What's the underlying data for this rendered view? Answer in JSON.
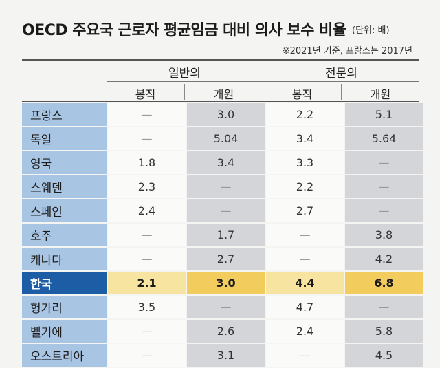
{
  "title": "OECD 주요국 근로자 평균임금 대비 의사 보수 비율",
  "unit": "(단위: 배)",
  "note": "※2021년 기준, 프랑스는 2017년",
  "groups": [
    "일반의",
    "전문의"
  ],
  "subheaders": [
    "봉직",
    "개원",
    "봉직",
    "개원"
  ],
  "chart_data": {
    "type": "table",
    "title": "OECD 주요국 근로자 평균임금 대비 의사 보수 비율",
    "columns": [
      "일반의 봉직",
      "일반의 개원",
      "전문의 봉직",
      "전문의 개원"
    ],
    "rows": [
      {
        "country": "프랑스",
        "values": [
          "—",
          "3.0",
          "2.2",
          "5.1"
        ]
      },
      {
        "country": "독일",
        "values": [
          "—",
          "5.04",
          "3.4",
          "5.64"
        ]
      },
      {
        "country": "영국",
        "values": [
          "1.8",
          "3.4",
          "3.3",
          "—"
        ]
      },
      {
        "country": "스웨덴",
        "values": [
          "2.3",
          "—",
          "2.2",
          "—"
        ]
      },
      {
        "country": "스페인",
        "values": [
          "2.4",
          "—",
          "2.7",
          "—"
        ]
      },
      {
        "country": "호주",
        "values": [
          "—",
          "1.7",
          "—",
          "3.8"
        ]
      },
      {
        "country": "캐나다",
        "values": [
          "—",
          "2.7",
          "—",
          "4.2"
        ]
      },
      {
        "country": "한국",
        "values": [
          "2.1",
          "3.0",
          "4.4",
          "6.8"
        ],
        "highlight": true
      },
      {
        "country": "헝가리",
        "values": [
          "3.5",
          "—",
          "4.7",
          "—"
        ]
      },
      {
        "country": "벨기에",
        "values": [
          "—",
          "2.6",
          "2.4",
          "5.8"
        ]
      },
      {
        "country": "오스트리아",
        "values": [
          "—",
          "3.1",
          "—",
          "4.5"
        ]
      }
    ]
  },
  "colors": {
    "label_bg": "#a9c5e4",
    "highlight_label_bg": "#1c5da6",
    "highlight_cell_light": "#f7e4a0",
    "highlight_cell_dark": "#f3cc5e",
    "gray_col": "#d4d5d9"
  }
}
